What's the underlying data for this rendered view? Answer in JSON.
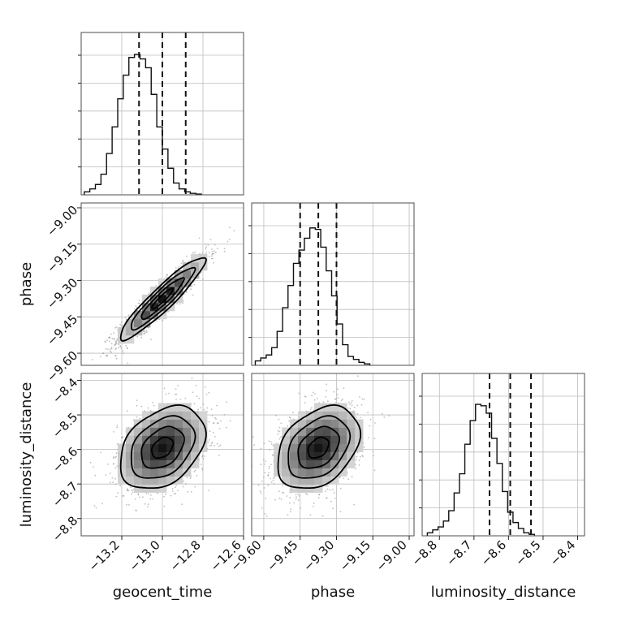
{
  "chart_data": {
    "type": "corner",
    "parameters": [
      {
        "name": "geocent_time",
        "label": "geocent_time",
        "range": [
          -13.4,
          -12.6
        ],
        "ticks": [
          -13.2,
          -13.0,
          -12.8,
          -12.6
        ],
        "tick_labels": [
          "−13.2",
          "−13.0",
          "−12.8",
          "−12.6"
        ],
        "quantiles": [
          -13.115,
          -13.0,
          -12.885
        ],
        "hist_start": -13.385,
        "hist_width": 0.0275,
        "hist": [
          0.02,
          0.04,
          0.07,
          0.14,
          0.28,
          0.46,
          0.65,
          0.81,
          0.93,
          0.95,
          0.92,
          0.86,
          0.68,
          0.46,
          0.31,
          0.18,
          0.08,
          0.04,
          0.02,
          0.01,
          0.005
        ]
      },
      {
        "name": "phase",
        "label": "phase",
        "range": [
          -9.65,
          -8.98
        ],
        "ticks": [
          -9.6,
          -9.45,
          -9.3,
          -9.15,
          -9.0
        ],
        "tick_labels": [
          "−9.60",
          "−9.45",
          "−9.30",
          "−9.15",
          "−9.00"
        ],
        "quantiles": [
          -9.45,
          -9.375,
          -9.3
        ],
        "hist_start": -9.635,
        "hist_width": 0.0225,
        "hist": [
          0.03,
          0.05,
          0.07,
          0.12,
          0.23,
          0.39,
          0.54,
          0.69,
          0.78,
          0.86,
          0.93,
          0.92,
          0.8,
          0.64,
          0.47,
          0.28,
          0.14,
          0.06,
          0.04,
          0.02,
          0.01
        ]
      },
      {
        "name": "luminosity_distance",
        "label": "luminosity_distance",
        "range": [
          -8.85,
          -8.38
        ],
        "ticks": [
          -8.8,
          -8.7,
          -8.6,
          -8.5,
          -8.4
        ],
        "tick_labels": [
          "−8.8",
          "−8.7",
          "−8.6",
          "−8.5",
          "−8.4"
        ],
        "quantiles": [
          -8.655,
          -8.595,
          -8.535
        ],
        "hist_start": -8.835,
        "hist_width": 0.0155,
        "hist": [
          0.02,
          0.04,
          0.06,
          0.1,
          0.17,
          0.29,
          0.42,
          0.62,
          0.78,
          0.89,
          0.88,
          0.83,
          0.66,
          0.49,
          0.3,
          0.16,
          0.09,
          0.05,
          0.02,
          0.01
        ]
      }
    ],
    "pairs": [
      {
        "x": "geocent_time",
        "y": "phase",
        "center": [
          -13.0,
          -9.375
        ],
        "sd": [
          0.105,
          0.085
        ],
        "rho": 0.93
      },
      {
        "x": "geocent_time",
        "y": "luminosity_distance",
        "center": [
          -13.0,
          -8.595
        ],
        "sd": [
          0.105,
          0.06
        ],
        "rho": 0.35
      },
      {
        "x": "phase",
        "y": "luminosity_distance",
        "center": [
          -9.375,
          -8.595
        ],
        "sd": [
          0.085,
          0.06
        ],
        "rho": 0.35
      }
    ],
    "contour_levels_sigma": [
      0.5,
      1.0,
      1.5,
      2.0
    ],
    "grid": true,
    "legend": "none"
  }
}
